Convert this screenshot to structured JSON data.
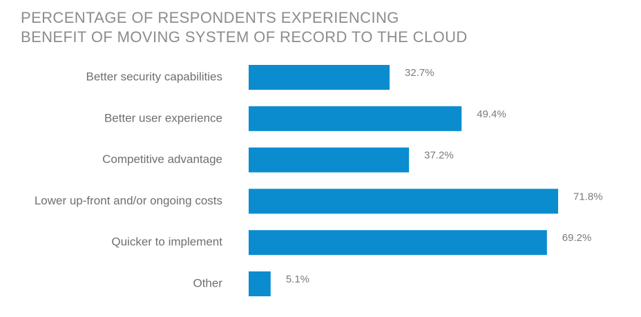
{
  "chart_data": {
    "type": "bar",
    "orientation": "horizontal",
    "title_lines": [
      "PERCENTAGE OF RESPONDENTS EXPERIENCING",
      "BENEFIT OF MOVING SYSTEM OF RECORD TO THE CLOUD"
    ],
    "categories": [
      "Better security capabilities",
      "Better user experience",
      "Competitive advantage",
      "Lower up-front and/or ongoing costs",
      "Quicker to implement",
      "Other"
    ],
    "values": [
      32.7,
      49.4,
      37.2,
      71.8,
      69.2,
      5.1
    ],
    "value_labels": [
      "32.7%",
      "49.4%",
      "37.2%",
      "71.8%",
      "69.2%",
      "5.1%"
    ],
    "xlim": [
      0,
      100
    ],
    "grid": false,
    "legend": "none",
    "bar_color": "#0a8ccf"
  }
}
